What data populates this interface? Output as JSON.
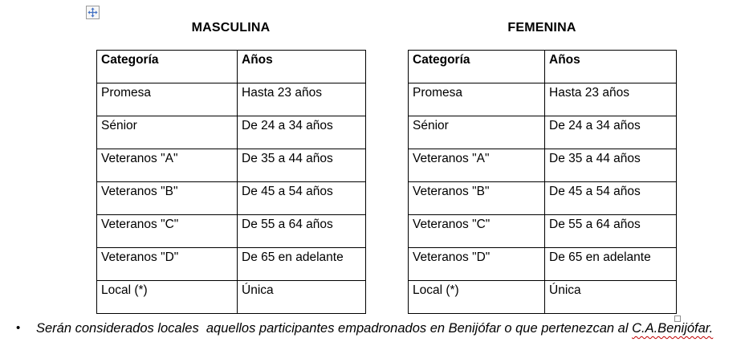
{
  "colors": {
    "move_arrow": "#4472c4",
    "table_border": "#000000",
    "squiggle": "#c00000",
    "background": "#ffffff"
  },
  "tables": [
    {
      "title": "MASCULINA",
      "headers": [
        "Categoría",
        "Años"
      ],
      "rows": [
        [
          "Promesa",
          "Hasta 23 años"
        ],
        [
          "Sénior",
          "De 24 a 34 años"
        ],
        [
          "Veteranos \"A\"",
          "De 35 a 44 años"
        ],
        [
          "Veteranos \"B\"",
          "De 45 a 54 años"
        ],
        [
          "Veteranos \"C\"",
          "De 55 a 64 años"
        ],
        [
          "Veteranos \"D\"",
          "De 65 en adelante"
        ],
        [
          "Local (*)",
          "Única"
        ]
      ]
    },
    {
      "title": "FEMENINA",
      "headers": [
        "Categoría",
        "Años"
      ],
      "rows": [
        [
          "Promesa",
          "Hasta 23 años"
        ],
        [
          "Sénior",
          "De 24 a 34 años"
        ],
        [
          "Veteranos \"A\"",
          "De 35 a 44 años"
        ],
        [
          "Veteranos \"B\"",
          "De 45 a 54 años"
        ],
        [
          "Veteranos \"C\"",
          "De 55 a 64 años"
        ],
        [
          "Veteranos \"D\"",
          "De 65 en adelante"
        ],
        [
          "Local (*)",
          "Única"
        ]
      ]
    }
  ],
  "note": {
    "bullet": "•",
    "text_before": "Serán considerados locales  aquellos participantes empadronados en Benijófar o que pertenezcan al ",
    "flagged": "C.A.Benijófar."
  }
}
